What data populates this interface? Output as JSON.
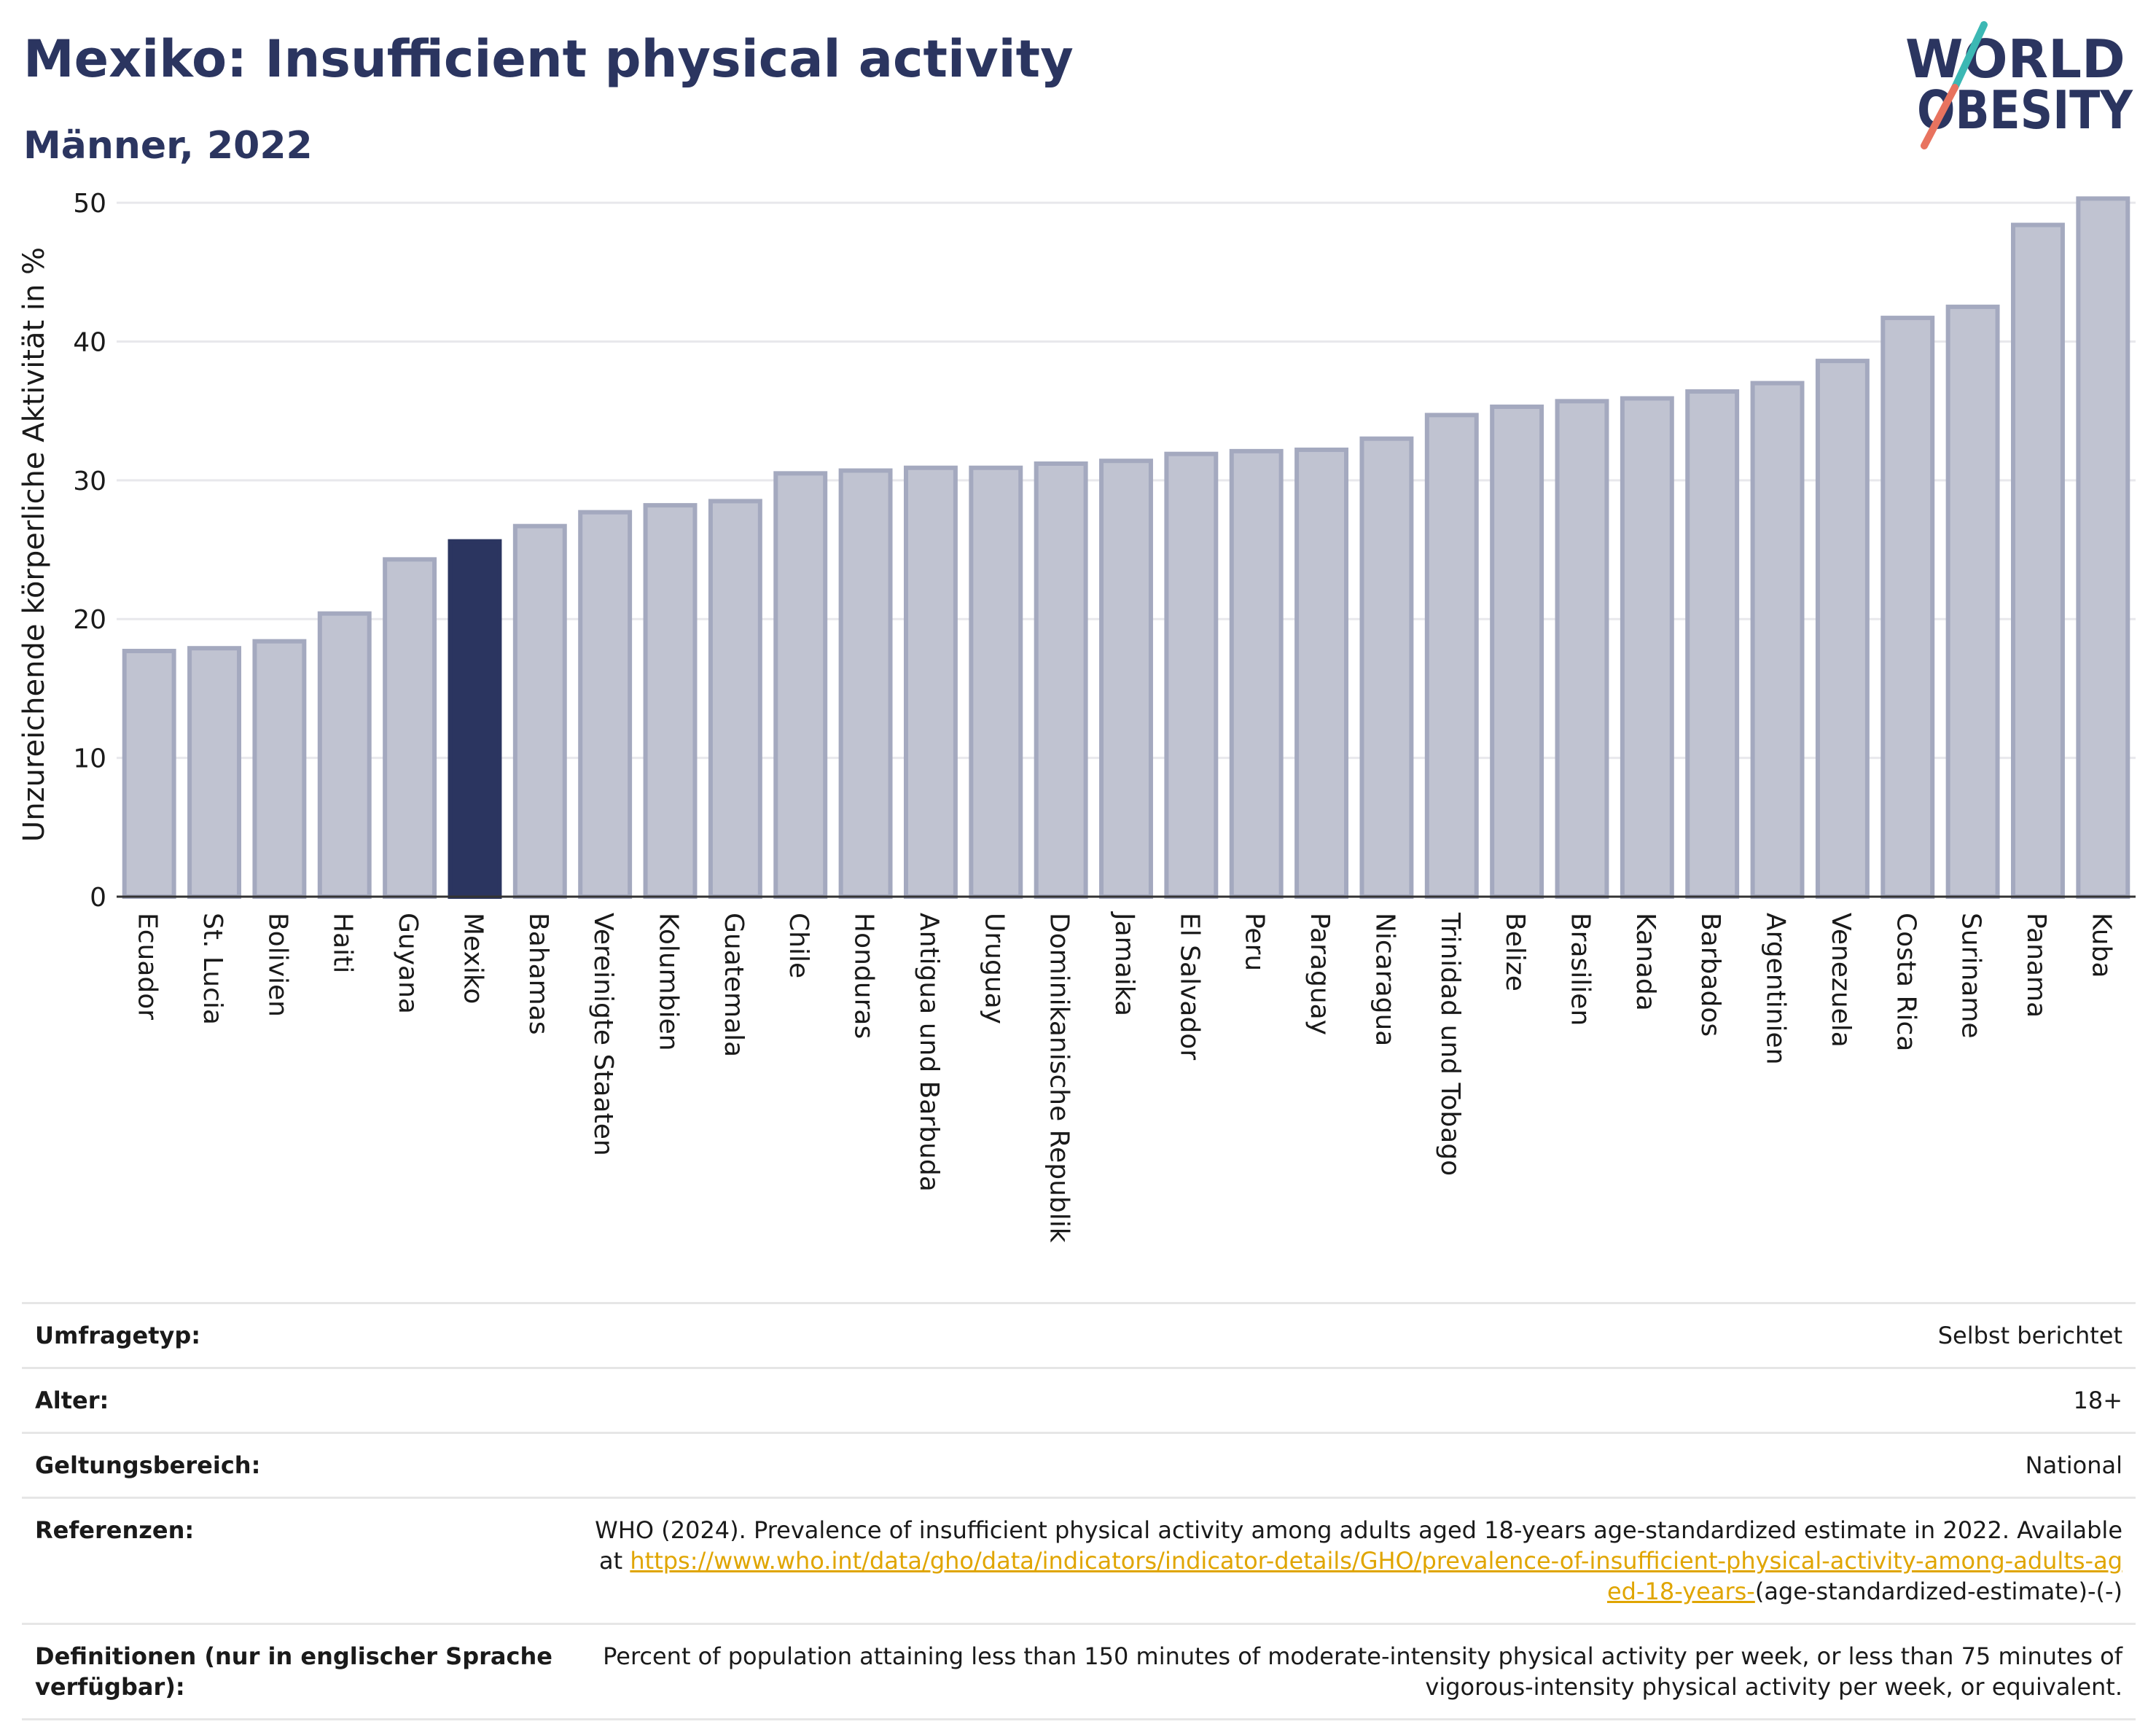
{
  "header": {
    "title": "Mexiko: Insufficient physical activity",
    "subtitle": "Männer, 2022"
  },
  "logo": {
    "line1": "WORLD",
    "line2": "OBESITY",
    "icon": "world-obesity-logo"
  },
  "colors": {
    "bar": "#c0c3d1",
    "bar_stroke": "#a4a9bf",
    "highlight": "#2b3560",
    "title": "#2b3560",
    "grid": "#e8e8ec",
    "link": "#e0a500",
    "logo_teal": "#3cb8b4",
    "logo_coral": "#e8735f"
  },
  "chart_data": {
    "type": "bar",
    "ylabel": "Unzureichende körperliche Aktivität in %",
    "ylim": [
      0,
      52
    ],
    "yticks": [
      0,
      10,
      20,
      30,
      40,
      50
    ],
    "grid": true,
    "highlight": "Mexiko",
    "categories": [
      "Ecuador",
      "St. Lucia",
      "Bolivien",
      "Haiti",
      "Guyana",
      "Mexiko",
      "Bahamas",
      "Vereinigte Staaten",
      "Kolumbien",
      "Guatemala",
      "Chile",
      "Honduras",
      "Antigua und Barbuda",
      "Uruguay",
      "Dominikanische Republik",
      "Jamaika",
      "El Salvador",
      "Peru",
      "Paraguay",
      "Nicaragua",
      "Trinidad und Tobago",
      "Belize",
      "Brasilien",
      "Kanada",
      "Barbados",
      "Argentinien",
      "Venezuela",
      "Costa Rica",
      "Suriname",
      "Panama",
      "Kuba"
    ],
    "values": [
      17.7,
      17.9,
      18.4,
      20.4,
      24.3,
      25.6,
      26.7,
      27.7,
      28.2,
      28.5,
      30.5,
      30.7,
      30.9,
      30.9,
      31.2,
      31.4,
      31.9,
      32.1,
      32.2,
      33.0,
      34.7,
      35.3,
      35.7,
      35.9,
      36.4,
      37.0,
      38.6,
      41.7,
      42.5,
      48.4,
      50.3
    ]
  },
  "meta": {
    "rows": [
      {
        "label": "Umfragetyp:",
        "value": "Selbst berichtet"
      },
      {
        "label": "Alter:",
        "value": "18+"
      },
      {
        "label": "Geltungsbereich:",
        "value": "National"
      }
    ],
    "references": {
      "label": "Referenzen:",
      "text": "WHO (2024). Prevalence of insufficient physical activity among adults aged 18-years age-standardized estimate in 2022. Available at",
      "link": "https://www.who.int/data/gho/data/indicators/indicator-details/GHO/prevalence-of-insufficient-physical-activity-among-adults-aged-18-years-",
      "suffix": "(age-standardized-estimate)-(-)"
    },
    "definitions": {
      "label": "Definitionen (nur in englischer Sprache verfügbar):",
      "value": "Percent of population attaining less than 150 minutes of moderate-intensity physical activity per week, or less than 75 minutes of vigorous-intensity physical activity per week, or equivalent."
    }
  }
}
